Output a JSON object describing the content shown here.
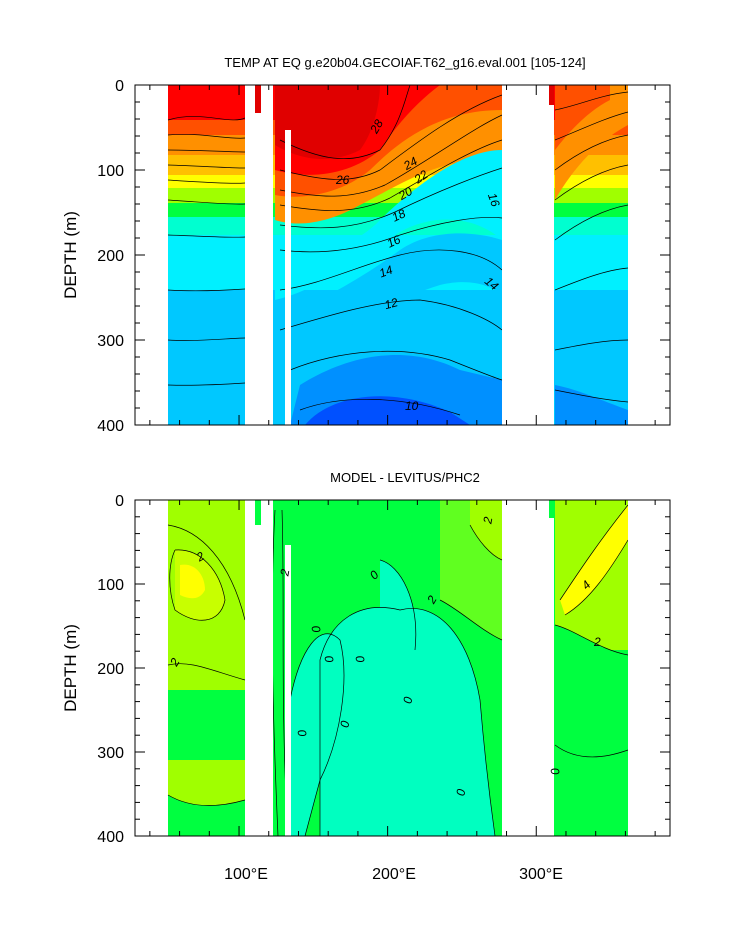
{
  "chart_data": [
    {
      "type": "contour",
      "title": "TEMP AT EQ g.e20b04.GECOIAF.T62_g16.eval.001 [105-124]",
      "xlabel": "",
      "ylabel": "DEPTH (m)",
      "xlim": [
        30,
        390
      ],
      "ylim": [
        400,
        0
      ],
      "x_ticks": [
        100,
        200,
        300
      ],
      "x_tick_labels": [
        "100°E",
        "200°E",
        "300°E"
      ],
      "y_ticks": [
        0,
        100,
        200,
        300,
        400
      ],
      "y_tick_labels": [
        "0",
        "100",
        "200",
        "300",
        "400"
      ],
      "land_gaps_lon": [
        [
          97,
          117
        ],
        [
          125,
          131
        ],
        [
          278,
          315
        ],
        [
          369,
          390
        ]
      ],
      "data_lon_range": [
        43,
        369
      ],
      "depth": [
        0,
        50,
        100,
        125,
        150,
        200,
        250,
        300,
        350,
        400
      ],
      "profiles": [
        {
          "lon": 50,
          "temp": [
            28.5,
            28.0,
            25.0,
            22.0,
            18.5,
            15.0,
            13.5,
            12.5,
            11.8,
            11.5
          ]
        },
        {
          "lon": 140,
          "temp": [
            29.0,
            28.8,
            26.5,
            22.0,
            18.0,
            14.5,
            12.5,
            11.5,
            10.8,
            10.2
          ]
        },
        {
          "lon": 200,
          "temp": [
            29.5,
            28.5,
            24.0,
            20.0,
            17.0,
            14.5,
            12.8,
            11.5,
            10.8,
            10.2
          ]
        },
        {
          "lon": 260,
          "temp": [
            26.0,
            22.0,
            18.0,
            16.5,
            15.5,
            14.0,
            13.0,
            12.0,
            11.0,
            10.5
          ]
        },
        {
          "lon": 340,
          "temp": [
            27.0,
            24.0,
            21.0,
            18.5,
            16.5,
            15.0,
            13.5,
            12.5,
            11.5,
            10.5
          ]
        }
      ],
      "contour_labels": [
        "28",
        "26",
        "24",
        "22",
        "20",
        "18",
        "16",
        "16",
        "14",
        "14",
        "12",
        "10"
      ],
      "colorscale": [
        "#0050ff",
        "#0090ff",
        "#00c8ff",
        "#00f0ff",
        "#00ffd0",
        "#00ff40",
        "#a0ff00",
        "#ffff00",
        "#ffc000",
        "#ff9000",
        "#ff5000",
        "#ff0000",
        "#e00000"
      ]
    },
    {
      "type": "contour",
      "title": "MODEL - LEVITUS/PHC2",
      "xlabel": "",
      "ylabel": "DEPTH (m)",
      "xlim": [
        30,
        390
      ],
      "ylim": [
        400,
        0
      ],
      "x_ticks": [
        100,
        200,
        300
      ],
      "x_tick_labels": [
        "100°E",
        "200°E",
        "300°E"
      ],
      "y_ticks": [
        0,
        100,
        200,
        300,
        400
      ],
      "y_tick_labels": [
        "0",
        "100",
        "200",
        "300",
        "400"
      ],
      "land_gaps_lon": [
        [
          97,
          117
        ],
        [
          125,
          131
        ],
        [
          278,
          315
        ],
        [
          369,
          390
        ]
      ],
      "data_lon_range": [
        43,
        369
      ],
      "diff_features": [
        {
          "lon": 67,
          "depth": 95,
          "value": 4.5
        },
        {
          "lon": 340,
          "depth": 90,
          "value": 4.5
        },
        {
          "lon": 200,
          "depth": 320,
          "value": -1.5
        },
        {
          "lon": 190,
          "depth": 160,
          "value": -0.5
        }
      ],
      "contour_labels": [
        "2",
        "2",
        "0",
        "2",
        "0",
        "2",
        "0",
        "0",
        "0",
        "0",
        "0",
        "0",
        "2",
        "0",
        "4",
        "2"
      ],
      "colorscale": [
        "#00ffc0",
        "#00ff60",
        "#a0ff00",
        "#ffff00"
      ]
    }
  ]
}
